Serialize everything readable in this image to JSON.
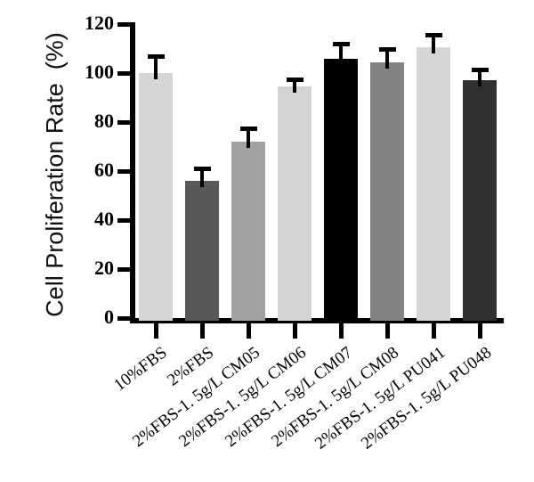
{
  "chart_data": {
    "type": "bar",
    "title": "",
    "ylabel": "Cell Proliferation Rate  (%)",
    "xlabel": "",
    "ylim": [
      0,
      120
    ],
    "yticks": [
      0,
      20,
      40,
      60,
      80,
      100,
      120
    ],
    "grid": "off",
    "legend_position": "none",
    "error_bars": "upper only, black caps",
    "categories": [
      "10%FBS",
      "2%FBS",
      "2%FBS-1. 5g/L CM05",
      "2%FBS-1. 5g/L CM06",
      "2%FBS-1. 5g/L CM07",
      "2%FBS-1. 5g/L CM08",
      "2%FBS-1. 5g/L PU041",
      "2%FBS-1. 5g/L PU048"
    ],
    "values": [
      100,
      56,
      72,
      94.5,
      106,
      104.5,
      110.5,
      97
    ],
    "errors": [
      7,
      5,
      5.5,
      3,
      6,
      5.5,
      5,
      4.5
    ],
    "bar_colors": [
      "#d6d6d6",
      "#595959",
      "#a1a1a3",
      "#d3d3d3",
      "#000000",
      "#828282",
      "#d6d6d6",
      "#303032"
    ],
    "axis_color": "#000000",
    "background_color": "#ffffff"
  }
}
